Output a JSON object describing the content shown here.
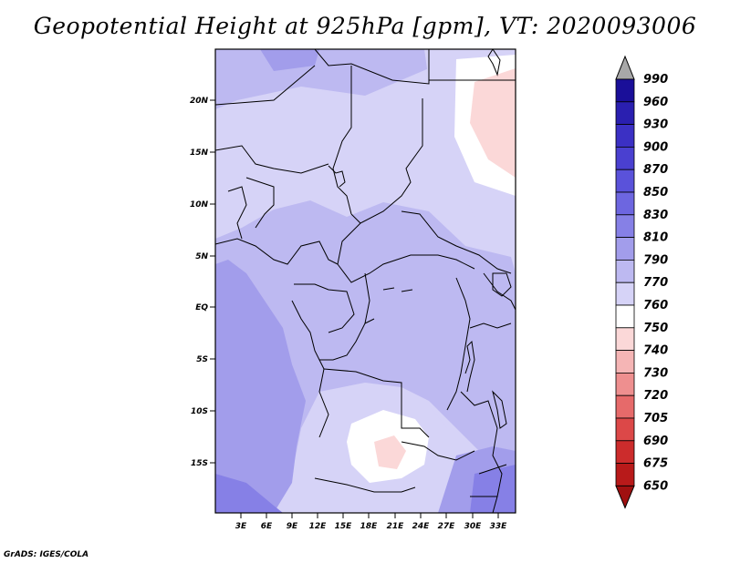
{
  "title": "Geopotential Height at 925hPa [gpm], VT: 2020093006",
  "credit": "GrADS: IGES/COLA",
  "map": {
    "lat_labels": [
      "20N",
      "15N",
      "10N",
      "5N",
      "EQ",
      "5S",
      "10S",
      "15S"
    ],
    "lon_labels": [
      "3E",
      "6E",
      "9E",
      "12E",
      "15E",
      "18E",
      "21E",
      "24E",
      "27E",
      "30E",
      "33E"
    ]
  },
  "colorbar": {
    "levels": [
      "990",
      "960",
      "930",
      "900",
      "870",
      "850",
      "830",
      "810",
      "790",
      "770",
      "760",
      "750",
      "740",
      "730",
      "720",
      "705",
      "690",
      "675",
      "650"
    ],
    "colors": [
      "#1a0f99",
      "#2a1fb0",
      "#3b30c4",
      "#4a40d0",
      "#5a52da",
      "#6d66e0",
      "#8680e6",
      "#a29deb",
      "#bdb9f1",
      "#d6d3f7",
      "#ffffff",
      "#fbd8d8",
      "#f5b5b5",
      "#ee8f8f",
      "#e66a6a",
      "#dc4848",
      "#cc2c2c",
      "#b81a1a",
      "#a01010"
    ],
    "top_color": "#a8a8a8",
    "bottom_color": "#a01010"
  }
}
